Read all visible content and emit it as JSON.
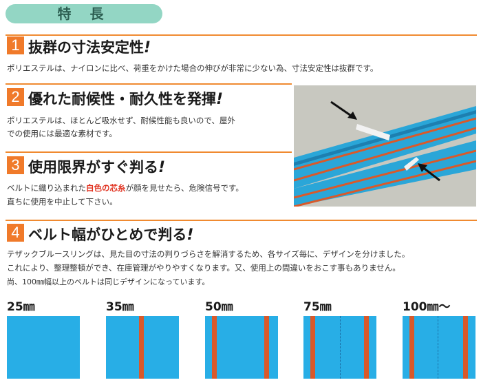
{
  "header": {
    "title": "特 長"
  },
  "sections": [
    {
      "number": "1",
      "title": "抜群の寸法安定性",
      "mark": "!",
      "lines": [
        "ポリエステルは、ナイロンに比べ、荷重をかけた場合の伸びが非常に少ない為、寸法安定性は抜群です。"
      ]
    },
    {
      "number": "2",
      "title": "優れた耐候性・耐久性を発揮",
      "mark": "!",
      "lines": [
        "ポリエステルは、ほとんど吸水せず、耐候性能も良いので、屋外",
        "での使用には最適な素材です。"
      ]
    },
    {
      "number": "3",
      "title": "使用限界がすぐ判る",
      "mark": "!",
      "line1_before": "ベルトに織り込まれた",
      "line1_highlight": "白色の芯糸",
      "line1_after": "が顔を見せたら、危険信号です。",
      "line2": "直ちに使用を中止して下さい。"
    },
    {
      "number": "4",
      "title": "ベルト幅がひとめで判る",
      "mark": "!",
      "lines": [
        "テザックブルースリングは、見た目の寸法の判りづらさを解消するため、各サイズ毎に、デザインを分けました。",
        "これにより、整理整頓ができ、在庫管理がやりやすくなります。又、使用上の間違いをおこす事もありません。",
        "尚、100㎜幅以上のベルトは同じデザインになっています。"
      ]
    }
  ],
  "sizes": [
    {
      "label": "25㎜"
    },
    {
      "label": "35㎜"
    },
    {
      "label": "50㎜"
    },
    {
      "label": "75㎜"
    },
    {
      "label": "100㎜〜"
    }
  ],
  "colors": {
    "accent": "#f07a2a",
    "header_bg": "#93d6c4",
    "belt_blue": "#28aee6",
    "belt_stripe": "#d9592a",
    "highlight": "#e0301e"
  },
  "photo": {
    "subject": "blue polyester sling belts with red stripes and exposed white core threads"
  }
}
